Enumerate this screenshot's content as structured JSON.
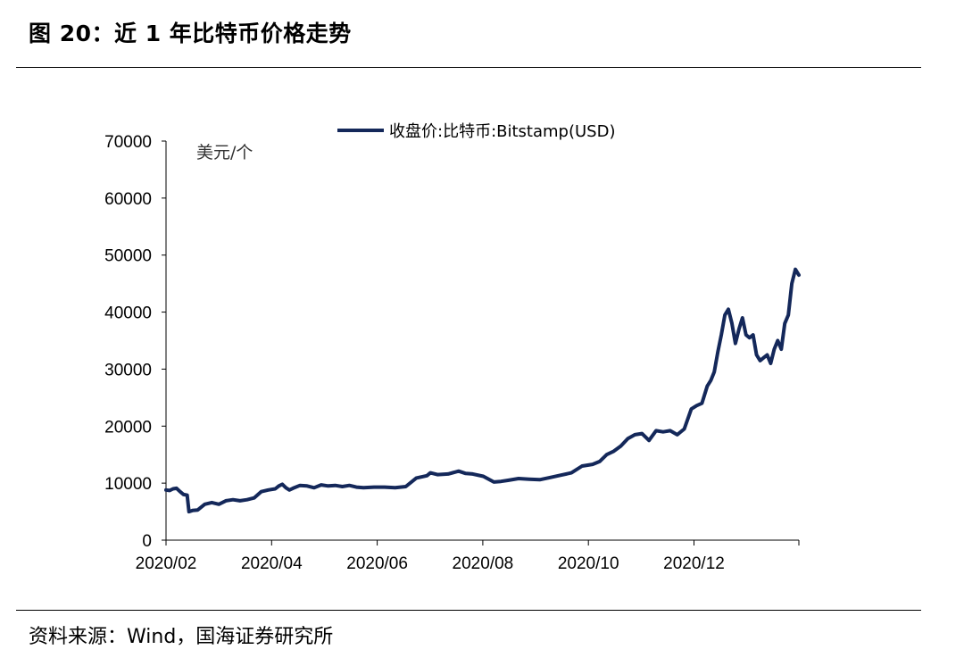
{
  "header": {
    "title": "图 20：近 1 年比特币价格走势"
  },
  "footer": {
    "source": "资料来源：Wind，国海证券研究所"
  },
  "chart_data": {
    "type": "line",
    "title": "近 1 年比特币价格走势",
    "ylabel": "美元/个",
    "xlabel": "",
    "ylim": [
      0,
      70000
    ],
    "yticks": [
      0,
      10000,
      20000,
      30000,
      40000,
      50000,
      60000,
      70000
    ],
    "xticks": [
      "2020/02",
      "2020/04",
      "2020/06",
      "2020/08",
      "2020/10",
      "2020/12"
    ],
    "legend_position": "top-center",
    "line_color": "#14285a",
    "series": [
      {
        "name": "收盘价:比特币:Bitstamp(USD)",
        "x": [
          0,
          2,
          4,
          6,
          8,
          10,
          12,
          13,
          15,
          18,
          22,
          26,
          30,
          34,
          38,
          42,
          46,
          50,
          54,
          58,
          62,
          64,
          66,
          68,
          70,
          72,
          76,
          80,
          84,
          88,
          92,
          96,
          100,
          104,
          108,
          112,
          118,
          124,
          130,
          136,
          142,
          148,
          150,
          154,
          160,
          166,
          170,
          174,
          180,
          186,
          190,
          194,
          200,
          206,
          212,
          218,
          224,
          230,
          236,
          242,
          246,
          250,
          254,
          258,
          262,
          266,
          270,
          274,
          278,
          282,
          286,
          290,
          294,
          298,
          301,
          304,
          307,
          309,
          311,
          313,
          315,
          317,
          319,
          321,
          323,
          325,
          327,
          329,
          331,
          333,
          335,
          337,
          339,
          341,
          343,
          345,
          347,
          349,
          351,
          353,
          355,
          357,
          359
        ],
        "values": [
          8800,
          8700,
          9000,
          9100,
          8500,
          8000,
          7900,
          5000,
          5200,
          5300,
          6300,
          6600,
          6300,
          6900,
          7100,
          6900,
          7100,
          7400,
          8500,
          8800,
          9000,
          9500,
          9800,
          9200,
          8800,
          9100,
          9600,
          9500,
          9200,
          9700,
          9500,
          9600,
          9400,
          9600,
          9300,
          9200,
          9300,
          9300,
          9200,
          9400,
          10900,
          11300,
          11800,
          11500,
          11600,
          12100,
          11700,
          11600,
          11200,
          10200,
          10300,
          10500,
          10800,
          10700,
          10600,
          11000,
          11400,
          11800,
          13000,
          13300,
          13800,
          15000,
          15600,
          16500,
          17800,
          18500,
          18700,
          17500,
          19200,
          19000,
          19200,
          18500,
          19500,
          23000,
          23600,
          24000,
          27000,
          28000,
          29500,
          33000,
          36000,
          39500,
          40500,
          38000,
          34500,
          37000,
          39000,
          36000,
          35500,
          36000,
          32500,
          31500,
          32000,
          32500,
          31000,
          33500,
          35000,
          33500,
          38000,
          39500,
          45000,
          47500,
          46500
        ]
      }
    ]
  }
}
